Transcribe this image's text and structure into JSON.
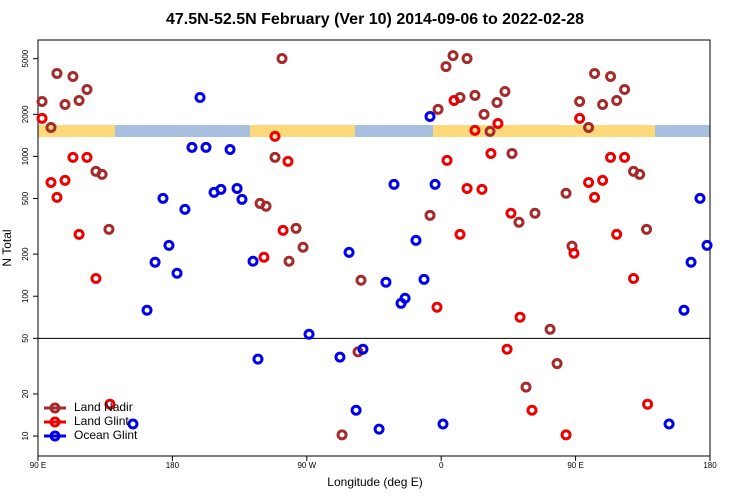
{
  "chart_data": {
    "type": "scatter",
    "title": "47.5N-52.5N February (Ver 10)   2014-09-06 to 2022-02-28",
    "xlabel": "Longitude (deg E)",
    "ylabel": "N Total",
    "xlim": [
      90,
      540
    ],
    "xticks": [
      {
        "value": 90,
        "label": "90 E"
      },
      {
        "value": 180,
        "label": "180"
      },
      {
        "value": 270,
        "label": "90 W"
      },
      {
        "value": 360,
        "label": "0"
      },
      {
        "value": 450,
        "label": "90 E"
      },
      {
        "value": 540,
        "label": "180"
      }
    ],
    "ylim": [
      7.2,
      6800
    ],
    "yscale": "log",
    "yticks": [
      10,
      20,
      50,
      100,
      200,
      500,
      1000,
      2000,
      5000
    ],
    "hline": 50,
    "legend": "bottom left",
    "series": [
      {
        "name": "Land Nadir",
        "color": "#a52a2a",
        "x": [
          92.7,
          98.7,
          102.7,
          108.1,
          113.4,
          117.5,
          122.8,
          128.8,
          132.9,
          137.5,
          253.4,
          238.7,
          242.7,
          248.7,
          258.1,
          262.8,
          267.5,
          306.3,
          304.3,
          293.6,
          352.5,
          357.9,
          363.2,
          367.9,
          372.6,
          377.3,
          382.6,
          388.7,
          392.7,
          397.4,
          402.7,
          407.4,
          412.1,
          422.8,
          432.9,
          437.6,
          416.8,
          443.6,
          447.6,
          452.7,
          458.7,
          462.7,
          468.1,
          473.4,
          477.5,
          482.8,
          488.8,
          492.9,
          497.5
        ],
        "values": [
          2470,
          1610,
          3920,
          2350,
          3730,
          2510,
          3010,
          782,
          744,
          301,
          5010,
          461,
          440,
          984,
          178,
          306,
          224,
          130,
          40,
          10.2,
          379,
          2170,
          4390,
          5260,
          2640,
          5010,
          2730,
          2000,
          1510,
          2430,
          2910,
          1050,
          338,
          392,
          58,
          33,
          22.4,
          545,
          228,
          2470,
          1610,
          3920,
          2350,
          3730,
          2510,
          3010,
          782,
          744,
          301
        ]
      },
      {
        "name": "Land Glint",
        "color": "#ee0000",
        "x": [
          92.7,
          98.7,
          102.7,
          108.1,
          113.4,
          117.5,
          122.8,
          128.8,
          138.2,
          248.7,
          241.3,
          254.1,
          257.4,
          357.2,
          363.9,
          368.6,
          372.6,
          377.3,
          382.6,
          387.3,
          393.3,
          398.0,
          404.1,
          406.7,
          412.8,
          420.8,
          443.6,
          448.9,
          452.7,
          458.7,
          462.7,
          468.1,
          473.4,
          477.5,
          482.8,
          488.8,
          498.2
        ],
        "values": [
          1870,
          651,
          509,
          674,
          984,
          277,
          984,
          134,
          16.9,
          1390,
          190,
          296,
          921,
          83.4,
          936,
          2510,
          277,
          590,
          1535,
          581,
          1050,
          1720,
          41.8,
          392,
          70.8,
          15.3,
          10.2,
          203,
          1870,
          651,
          509,
          674,
          984,
          277,
          984,
          134,
          16.9
        ]
      },
      {
        "name": "Ocean Glint",
        "color": "#0000ee",
        "x": [
          153.6,
          163.0,
          168.4,
          173.7,
          177.7,
          183.1,
          188.4,
          193.1,
          198.5,
          202.5,
          207.9,
          212.5,
          218.6,
          223.3,
          226.6,
          234.0,
          237.3,
          271.5,
          292.2,
          298.3,
          303.0,
          307.6,
          318.4,
          323.0,
          328.4,
          333.1,
          335.8,
          343.1,
          348.5,
          352.5,
          355.9,
          361.2,
          512.6,
          522.6,
          527.3,
          533.3,
          538.0
        ],
        "values": [
          12.2,
          79.4,
          175,
          501,
          231,
          146,
          418,
          1160,
          2640,
          1160,
          553,
          581,
          1120,
          590,
          493,
          178,
          35.5,
          53.5,
          36.7,
          206,
          15.3,
          41.8,
          11.2,
          126,
          631,
          89,
          96.8,
          251,
          132,
          1930,
          631,
          12.2,
          12.2,
          79.4,
          175,
          501,
          231
        ]
      }
    ]
  }
}
